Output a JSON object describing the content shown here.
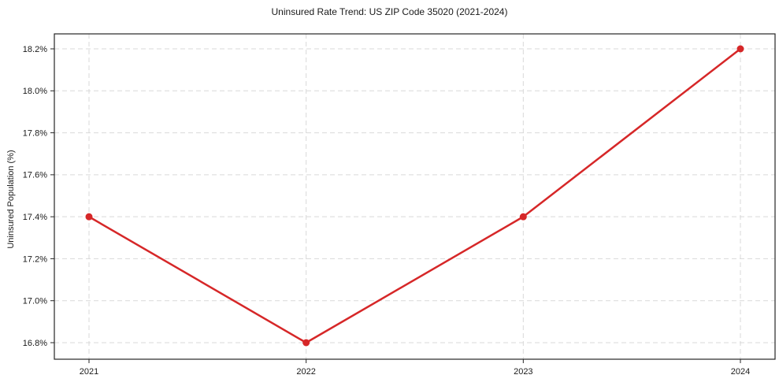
{
  "chart_data": {
    "type": "line",
    "title": "Uninsured Rate Trend: US ZIP Code 35020 (2021-2024)",
    "xlabel": "",
    "ylabel": "Uninsured Population (%)",
    "x": [
      2021,
      2022,
      2023,
      2024
    ],
    "values": [
      17.4,
      16.8,
      17.4,
      18.2
    ],
    "xtick_labels": [
      "2021",
      "2022",
      "2023",
      "2024"
    ],
    "yticks": [
      16.8,
      17.0,
      17.2,
      17.4,
      17.6,
      17.8,
      18.0,
      18.2
    ],
    "ytick_labels": [
      "16.8%",
      "17.0%",
      "17.2%",
      "17.4%",
      "17.6%",
      "17.8%",
      "18.0%",
      "18.2%"
    ],
    "ylim": [
      16.72,
      18.28
    ],
    "grid": true,
    "legend": "none",
    "colors": {
      "line": "#d62728",
      "marker": "#d62728",
      "grid": "#d9d9d9",
      "spine": "#262626",
      "text": "#1a1a1a"
    }
  }
}
